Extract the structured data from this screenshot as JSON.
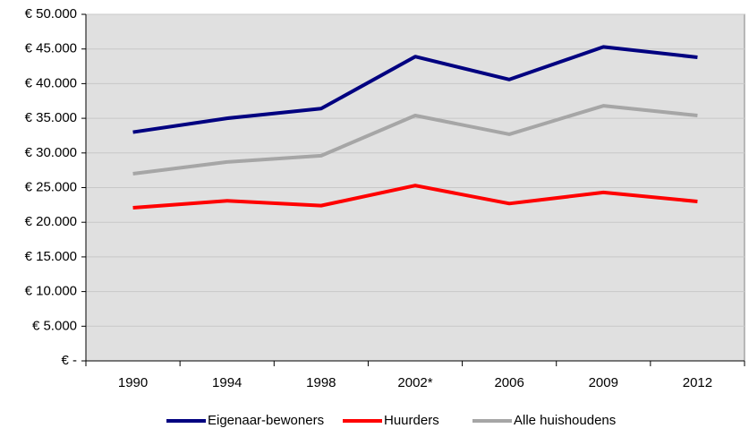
{
  "chart_data": {
    "type": "line",
    "categories": [
      "1990",
      "1994",
      "1998",
      "2002*",
      "2006",
      "2009",
      "2012"
    ],
    "series": [
      {
        "name": "Eigenaar-bewoners",
        "color": "#000080",
        "values": [
          33000,
          35000,
          36400,
          43900,
          40600,
          45300,
          43800
        ]
      },
      {
        "name": "Huurders",
        "color": "#ff0000",
        "values": [
          22100,
          23100,
          22400,
          25300,
          22700,
          24300,
          23000
        ]
      },
      {
        "name": "Alle huishoudens",
        "color": "#a6a6a6",
        "values": [
          27000,
          28700,
          29600,
          35400,
          32700,
          36800,
          35400
        ]
      }
    ],
    "ylim": [
      0,
      50000
    ],
    "yticks": [
      {
        "value": 0,
        "label": "€ -"
      },
      {
        "value": 5000,
        "label": "€ 5.000"
      },
      {
        "value": 10000,
        "label": "€ 10.000"
      },
      {
        "value": 15000,
        "label": "€ 15.000"
      },
      {
        "value": 20000,
        "label": "€ 20.000"
      },
      {
        "value": 25000,
        "label": "€ 25.000"
      },
      {
        "value": 30000,
        "label": "€ 30.000"
      },
      {
        "value": 35000,
        "label": "€ 35.000"
      },
      {
        "value": 40000,
        "label": "€ 40.000"
      },
      {
        "value": 45000,
        "label": "€ 45.000"
      },
      {
        "value": 50000,
        "label": "€ 50.000"
      }
    ],
    "grid": true,
    "legend": "bottom"
  }
}
